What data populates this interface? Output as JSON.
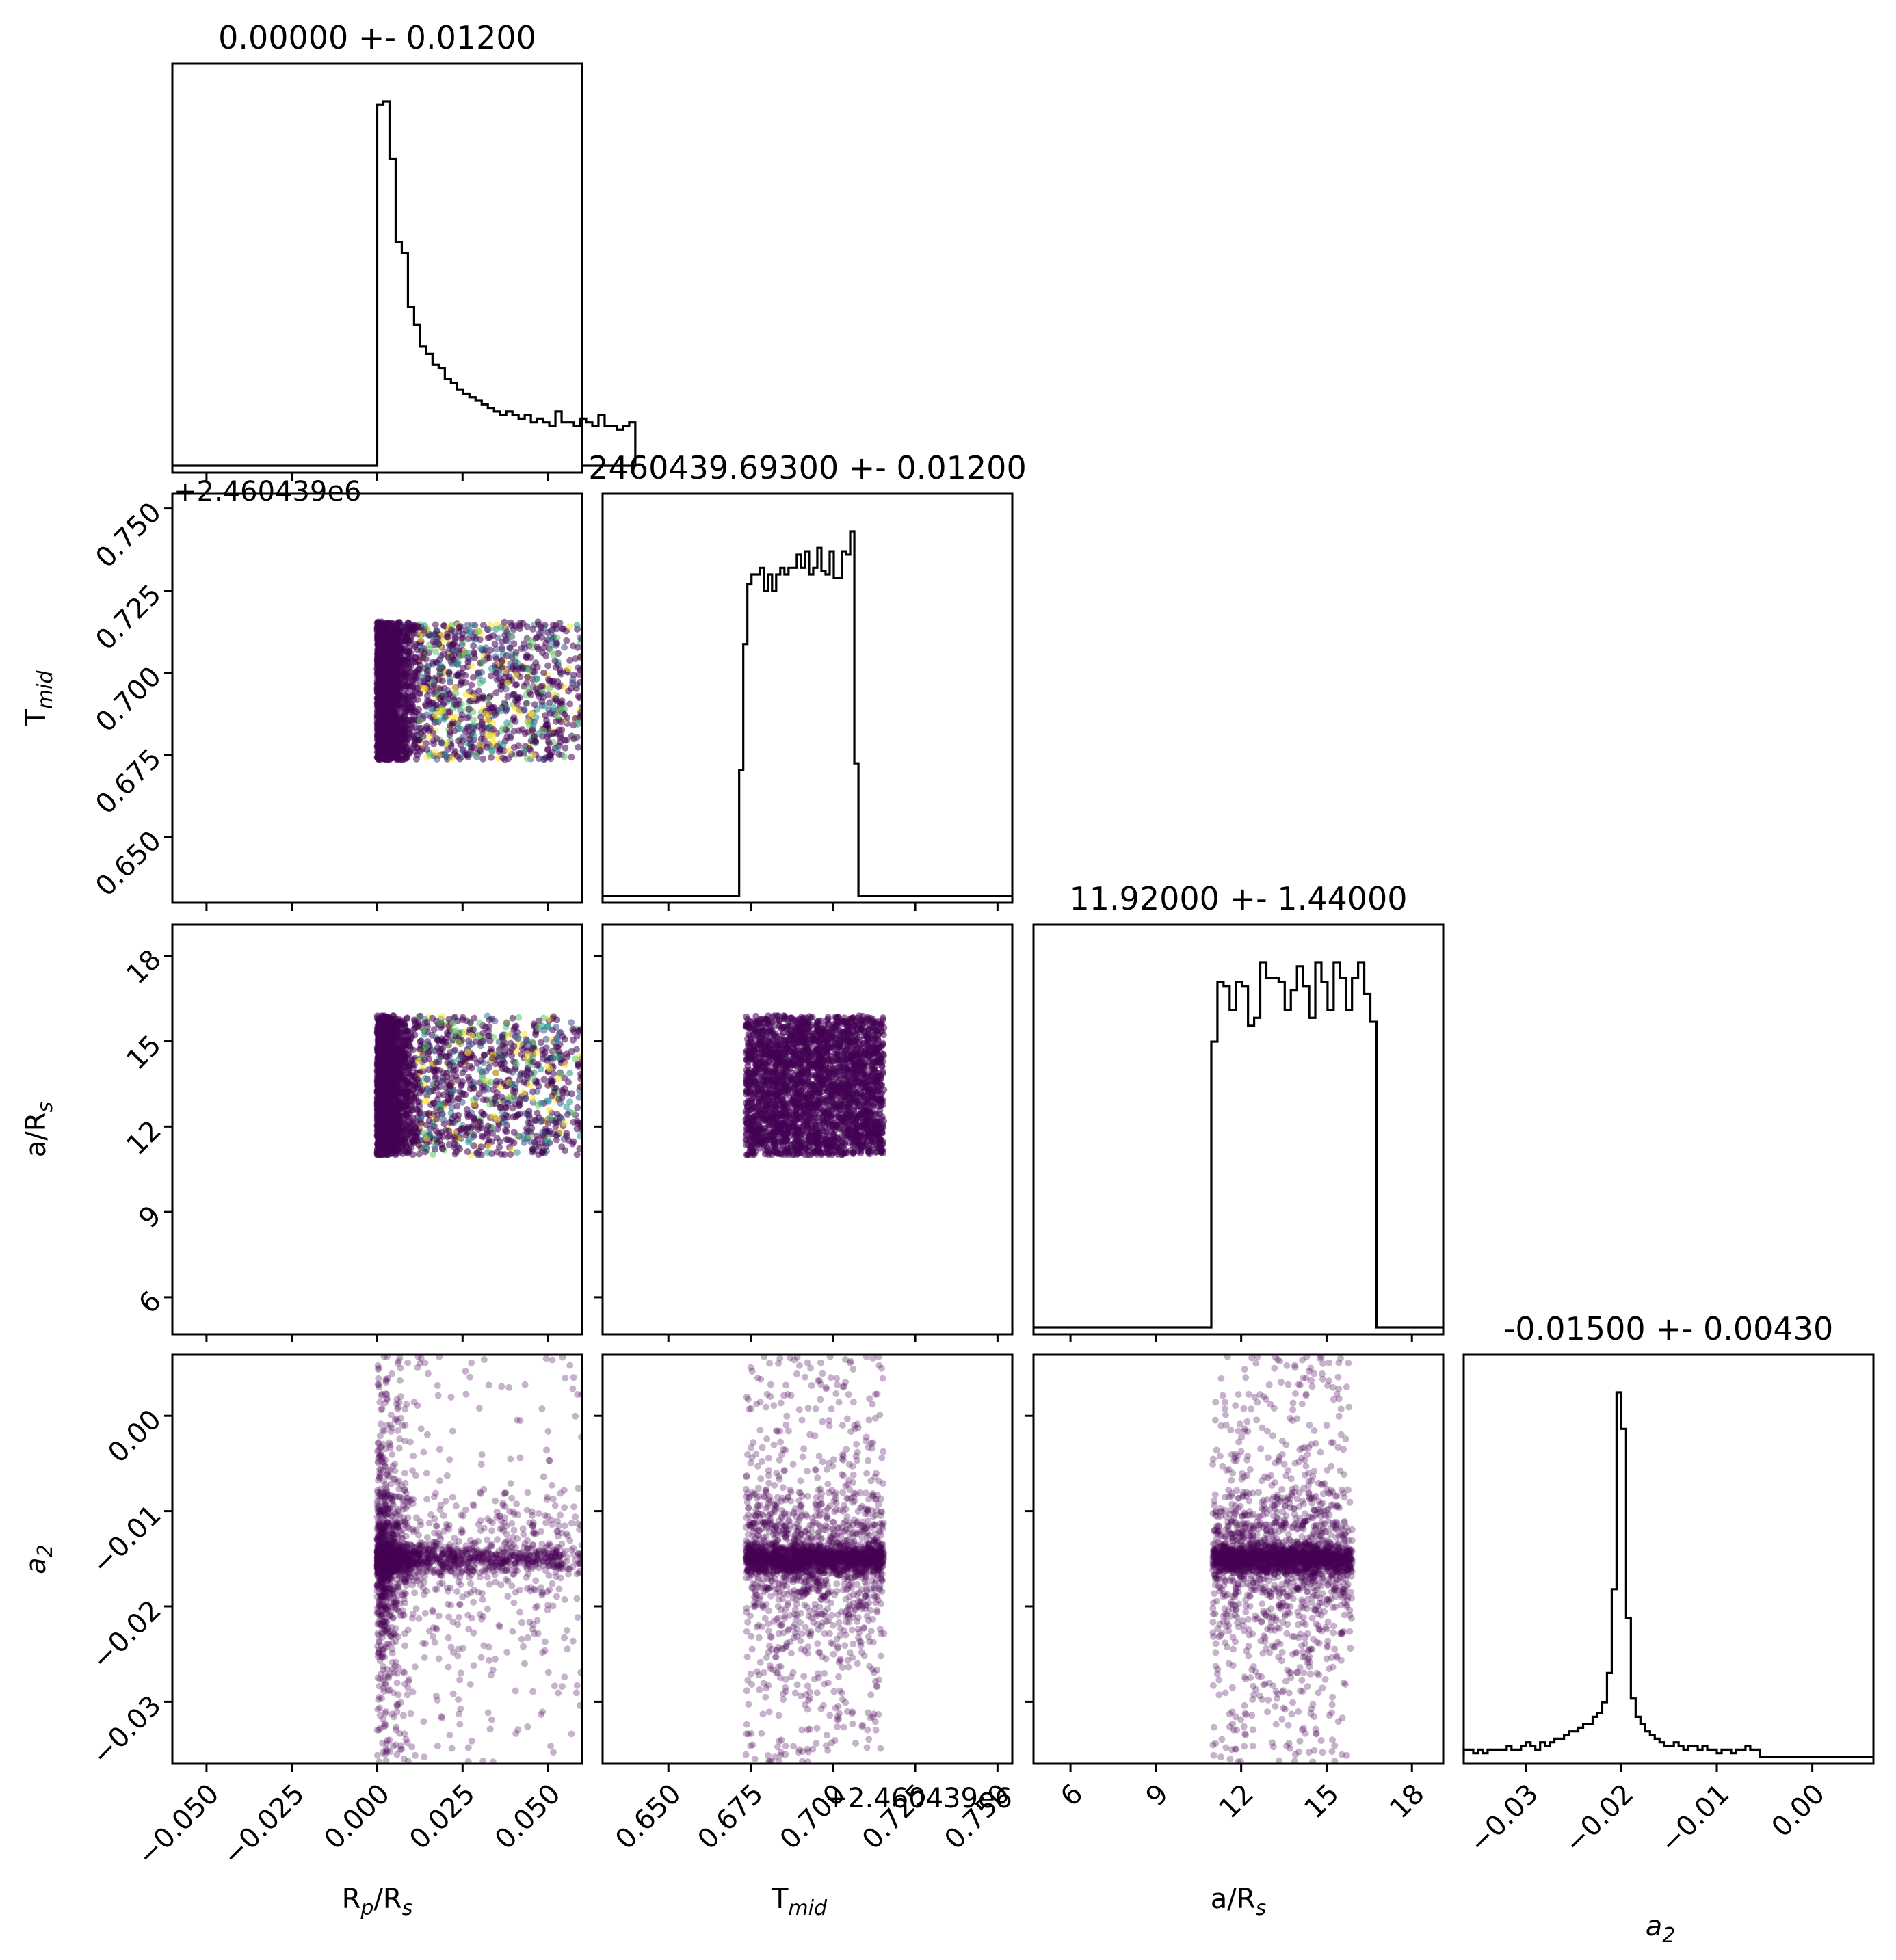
{
  "figure": {
    "type": "corner plot",
    "panel_titles": {
      "Rp_Rs": "0.00000 +- 0.01200",
      "Tmid": "2460439.69300 +- 0.01200",
      "a_Rs": "11.92000 +- 1.44000",
      "a2": "-0.01500 +- 0.00430"
    },
    "axis_labels": {
      "Rp_Rs": {
        "main": "R",
        "sub": "p",
        "rest": "/R",
        "sub2": "s"
      },
      "Tmid": {
        "main": "T",
        "sub": "mid"
      },
      "a_Rs": {
        "main": "a/R",
        "sub": "s"
      },
      "a2": {
        "main": "a",
        "sub": "2"
      }
    },
    "offset_texts": {
      "y_Tmid": "+2.460439e6",
      "x_Tmid": "+2.460439e6"
    },
    "scatter_colormap": [
      "#440154",
      "#3b528b",
      "#21918c",
      "#5ec962",
      "#fde725"
    ]
  },
  "chart_data": {
    "type": "scatter",
    "parameters": [
      "R_p/R_s",
      "T_mid",
      "a/R_s",
      "a_2"
    ],
    "ranges": {
      "Rp_Rs": [
        -0.06,
        0.06
      ],
      "Tmid": [
        0.63,
        0.7545
      ],
      "a_Rs": [
        4.7,
        19.1
      ],
      "a2": [
        -0.0365,
        0.0064
      ]
    },
    "ticks": {
      "Rp_Rs": [
        "−0.050",
        "−0.025",
        "0.000",
        "0.025",
        "0.050"
      ],
      "Rp_Rs_values": [
        -0.05,
        -0.025,
        0.0,
        0.025,
        0.05
      ],
      "Tmid": [
        "0.650",
        "0.675",
        "0.700",
        "0.725",
        "0.750"
      ],
      "Tmid_values": [
        0.65,
        0.675,
        0.7,
        0.725,
        0.75
      ],
      "a_Rs": [
        "6",
        "9",
        "12",
        "15",
        "18"
      ],
      "a_Rs_values": [
        6,
        9,
        12,
        15,
        18
      ],
      "a2": [
        "−0.03",
        "−0.02",
        "−0.01",
        "0.00"
      ],
      "a2_values": [
        -0.03,
        -0.02,
        -0.01,
        0.0
      ]
    },
    "histograms": {
      "Rp_Rs": {
        "x_start": 0.0,
        "bin_width": 0.0018,
        "counts": [
          100,
          101,
          85,
          62,
          59,
          44,
          39,
          33,
          31,
          28,
          27,
          24,
          23,
          21,
          20,
          19,
          18,
          17,
          16,
          15,
          14,
          15,
          14,
          13,
          14,
          12,
          13,
          12,
          11,
          15,
          12,
          12,
          11,
          13,
          12,
          11,
          14,
          11,
          11,
          10,
          11,
          12
        ]
      },
      "Tmid": {
        "x_start": 0.6715,
        "bin_width": 0.00125,
        "counts": [
          38,
          76,
          94,
          97,
          97,
          99,
          92,
          97,
          92,
          97,
          99,
          97,
          99,
          99,
          103,
          99,
          104,
          97,
          99,
          105,
          98,
          97,
          104,
          96,
          96,
          104,
          103,
          110,
          40
        ]
      },
      "a_Rs": {
        "x_start": 10.95,
        "bin_width": 0.215,
        "counts": [
          72,
          87,
          86,
          80,
          87,
          86,
          76,
          78,
          92,
          88,
          88,
          87,
          80,
          85,
          91,
          86,
          78,
          92,
          87,
          80,
          92,
          88,
          80,
          88,
          92,
          84,
          77
        ]
      },
      "a2": {
        "x_start": -0.0365,
        "bin_width": 0.0005,
        "counts": [
          2,
          2,
          1,
          2,
          1,
          2,
          2,
          2,
          2,
          3,
          2,
          2,
          3,
          4,
          3,
          2,
          4,
          3,
          4,
          5,
          5,
          6,
          7,
          7,
          8,
          9,
          9,
          11,
          12,
          15,
          23,
          46,
          100,
          90,
          38,
          16,
          11,
          9,
          7,
          6,
          5,
          4,
          3,
          3,
          4,
          3,
          2,
          3,
          3,
          2,
          3,
          2,
          2,
          1,
          2,
          2,
          1,
          2,
          2,
          3,
          2,
          2
        ]
      }
    },
    "scatter_samples": {
      "Rp_Rs": "skewed, 0.0 to 0.06 (dense near 0.0)",
      "Tmid": "uniform, 0.6735 to 0.7155",
      "a_Rs": "uniform, 11.0 to 15.9",
      "a2": "peaked at -0.0150, tails to ±0.021"
    }
  }
}
